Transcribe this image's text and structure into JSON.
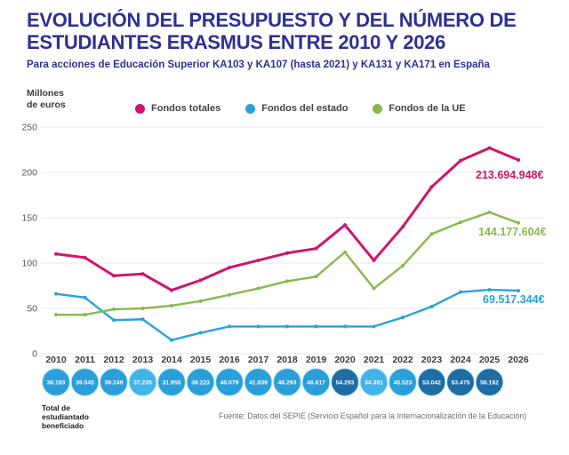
{
  "header": {
    "title_line1": "EVOLUCIÓN DEL PRESUPUESTO Y DEL NÚMERO DE",
    "title_line2": "ESTUDIANTES ERASMUS ENTRE 2010 Y 2026",
    "subtitle": "Para acciones de Educación Superior KA103 y KA107 (hasta 2021) y KA131 y KA171 en España"
  },
  "axis_unit": {
    "line1": "Millones",
    "line2": "de euros"
  },
  "chart_data": {
    "type": "line",
    "title": "Evolución del presupuesto y del número de estudiantes Erasmus entre 2010 y 2026",
    "xlabel": "",
    "ylabel": "Millones de euros",
    "ylim": [
      0,
      250
    ],
    "yticks": [
      0,
      50,
      100,
      150,
      200,
      250
    ],
    "grid": true,
    "legend_position": "top",
    "categories": [
      "2010",
      "2011",
      "2012",
      "2013",
      "2014",
      "2015",
      "2016",
      "2017",
      "2018",
      "2019",
      "2020",
      "2021",
      "2022",
      "2023",
      "2024",
      "2025",
      "2026"
    ],
    "series": [
      {
        "name": "Fondos totales",
        "color": "#d0146e",
        "values": [
          110,
          106,
          86,
          88,
          70,
          81,
          95,
          103,
          111,
          116,
          142,
          103,
          140,
          184,
          213,
          227,
          213.7
        ],
        "end_label": "213.694.948€"
      },
      {
        "name": "Fondos del estado",
        "color": "#29a3da",
        "values": [
          66,
          62,
          37,
          38,
          15,
          23,
          30,
          30,
          30,
          30,
          30,
          30,
          40,
          52,
          68,
          70.5,
          69.5
        ],
        "end_label": "69.517.344€"
      },
      {
        "name": "Fondos de la UE",
        "color": "#89b94e",
        "values": [
          43,
          43,
          49,
          50,
          53,
          58,
          65,
          72,
          80,
          85,
          112,
          72,
          97,
          132,
          145,
          156,
          144.2
        ],
        "end_label": "144.177.604€"
      }
    ],
    "students": {
      "label_line1": "Total de",
      "label_line2": "estudiantado",
      "label_line3": "beneficiado",
      "bubble_colors": {
        "light": "#41b5e9",
        "medium": "#2a9fd9",
        "dark": "#1e6da4"
      },
      "values": [
        {
          "year": "2010",
          "value": "36.183",
          "shade": "medium"
        },
        {
          "year": "2011",
          "value": "39.545",
          "shade": "medium"
        },
        {
          "year": "2012",
          "value": "39.249",
          "shade": "medium"
        },
        {
          "year": "2013",
          "value": "37.235",
          "shade": "light"
        },
        {
          "year": "2014",
          "value": "31.955",
          "shade": "medium"
        },
        {
          "year": "2015",
          "value": "39.223",
          "shade": "medium"
        },
        {
          "year": "2016",
          "value": "40.079",
          "shade": "medium"
        },
        {
          "year": "2017",
          "value": "41.839",
          "shade": "medium"
        },
        {
          "year": "2018",
          "value": "46.293",
          "shade": "medium"
        },
        {
          "year": "2019",
          "value": "46.617",
          "shade": "medium"
        },
        {
          "year": "2020",
          "value": "54.293",
          "shade": "dark"
        },
        {
          "year": "2021",
          "value": "34.381",
          "shade": "light"
        },
        {
          "year": "2022",
          "value": "45.523",
          "shade": "medium"
        },
        {
          "year": "2023",
          "value": "53.042",
          "shade": "dark"
        },
        {
          "year": "2024",
          "value": "53.475",
          "shade": "dark"
        },
        {
          "year": "2025",
          "value": "56.162",
          "shade": "dark"
        }
      ]
    }
  },
  "footer": {
    "source": "Fuente: Datos del SEPIE (Servicio Español para la Internacionalización de la Educación)"
  }
}
